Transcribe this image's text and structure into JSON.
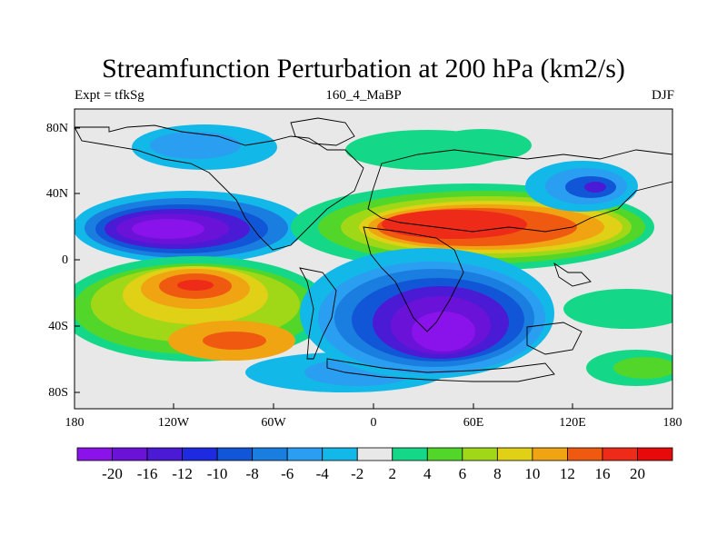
{
  "title": "Streamfunction Perturbation at 200 hPa (km2/s)",
  "subtitle_left": "Expt = tfkSg",
  "subtitle_center": "160_4_MaBP",
  "subtitle_right": "DJF",
  "lat_labels": [
    "80N",
    "40N",
    "0",
    "40S",
    "80S"
  ],
  "lon_labels": [
    "180",
    "120W",
    "60W",
    "0",
    "60E",
    "120E",
    "180"
  ],
  "colorbar": {
    "levels": [
      "-20",
      "-16",
      "-12",
      "-10",
      "-8",
      "-6",
      "-4",
      "-2",
      "2",
      "4",
      "6",
      "8",
      "10",
      "12",
      "16",
      "20"
    ],
    "colors": [
      "#8a12ea",
      "#6a12d8",
      "#4a1ad4",
      "#1e2ae0",
      "#1256d8",
      "#1a7ee0",
      "#2a9ef0",
      "#12b8e8",
      "#e8e8e8",
      "#14d888",
      "#52d62a",
      "#a0d818",
      "#e0d016",
      "#f0a412",
      "#f05a10",
      "#ee2a18",
      "#e60a0a"
    ]
  }
}
